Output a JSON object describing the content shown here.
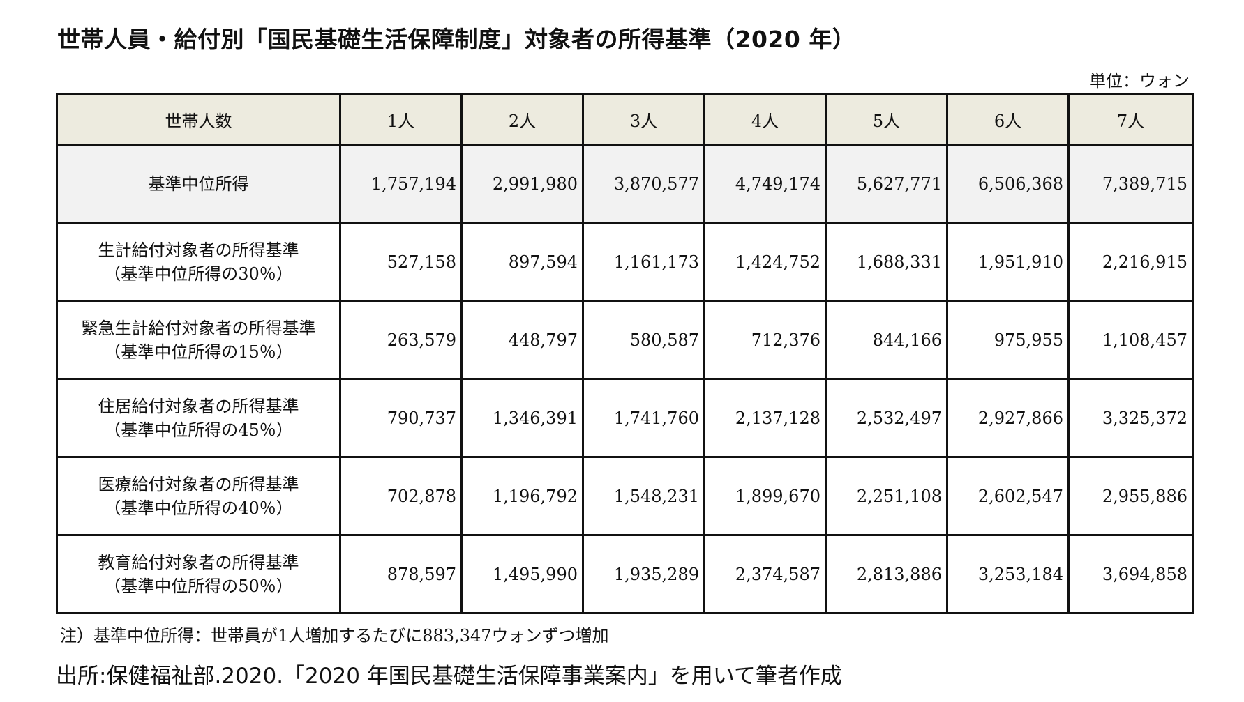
{
  "title": "世帯人員・給付別「国民基礎生活保障制度」対象者の所得基準（2020 年）",
  "unit": "単位：ウォン",
  "table": {
    "corner": "世帯人数",
    "columns": [
      "1人",
      "2人",
      "3人",
      "4人",
      "5人",
      "6人",
      "7人"
    ],
    "rows": [
      {
        "label": "基準中位所得",
        "sublabel": "",
        "values": [
          "1,757,194",
          "2,991,980",
          "3,870,577",
          "4,749,174",
          "5,627,771",
          "6,506,368",
          "7,389,715"
        ]
      },
      {
        "label": "生計給付対象者の所得基準",
        "sublabel": "（基準中位所得の30％）",
        "values": [
          "527,158",
          "897,594",
          "1,161,173",
          "1,424,752",
          "1,688,331",
          "1,951,910",
          "2,216,915"
        ]
      },
      {
        "label": "緊急生計給付対象者の所得基準",
        "sublabel": "（基準中位所得の15％）",
        "values": [
          "263,579",
          "448,797",
          "580,587",
          "712,376",
          "844,166",
          "975,955",
          "1,108,457"
        ]
      },
      {
        "label": "住居給付対象者の所得基準",
        "sublabel": "（基準中位所得の45％）",
        "values": [
          "790,737",
          "1,346,391",
          "1,741,760",
          "2,137,128",
          "2,532,497",
          "2,927,866",
          "3,325,372"
        ]
      },
      {
        "label": "医療給付対象者の所得基準",
        "sublabel": "（基準中位所得の40％）",
        "values": [
          "702,878",
          "1,196,792",
          "1,548,231",
          "1,899,670",
          "2,251,108",
          "2,602,547",
          "2,955,886"
        ]
      },
      {
        "label": "教育給付対象者の所得基準",
        "sublabel": "（基準中位所得の50％）",
        "values": [
          "878,597",
          "1,495,990",
          "1,935,289",
          "2,374,587",
          "2,813,886",
          "3,253,184",
          "3,694,858"
        ]
      }
    ]
  },
  "note": "注）基準中位所得：世帯員が1人増加するたびに883,347ウォンずつ増加",
  "source": "出所:保健福祉部.2020.「2020 年国民基礎生活保障事業案内」を用いて筆者作成",
  "colors": {
    "header_bg": "#edebdf",
    "median_row_bg": "#f2f2f2",
    "border": "#111111"
  }
}
